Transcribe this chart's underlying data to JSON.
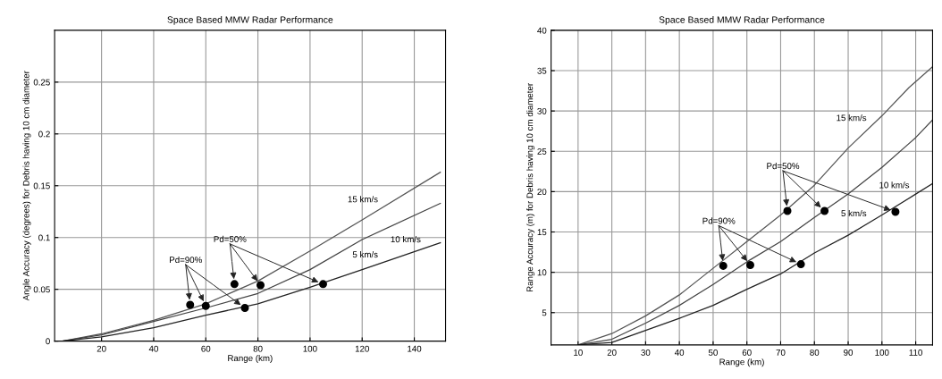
{
  "chart_data": [
    {
      "type": "line",
      "title": "Space Based MMW Radar Performance",
      "xlabel": "Range (km)",
      "ylabel": "Angle Accuracy (degrees) for Debris having 10 cm diameter",
      "xlim": [
        2,
        152
      ],
      "ylim": [
        0,
        0.3
      ],
      "xticks": [
        20,
        40,
        60,
        80,
        100,
        120,
        140
      ],
      "yticks": [
        0,
        0.05,
        0.1,
        0.15,
        0.2,
        0.25
      ],
      "grid": true,
      "marker": "none",
      "series": [
        {
          "name": "15 km/s",
          "color": "#555555",
          "x": [
            5,
            20,
            40,
            60,
            80,
            100,
            120,
            150
          ],
          "values": [
            0,
            0.007,
            0.02,
            0.036,
            0.058,
            0.087,
            0.117,
            0.163
          ]
        },
        {
          "name": "10 km/s",
          "color": "#444444",
          "x": [
            5,
            20,
            40,
            60,
            80,
            100,
            120,
            150
          ],
          "values": [
            0,
            0.006,
            0.019,
            0.032,
            0.046,
            0.069,
            0.098,
            0.133
          ]
        },
        {
          "name": "5 km/s",
          "color": "#222222",
          "x": [
            5,
            20,
            40,
            60,
            80,
            100,
            120,
            150
          ],
          "values": [
            0,
            0.004,
            0.013,
            0.025,
            0.036,
            0.052,
            0.069,
            0.095
          ]
        },
        {
          "type": "scatter",
          "marker": "circle",
          "color": "#000000",
          "x": [
            54,
            60,
            75
          ],
          "values": [
            0.035,
            0.034,
            0.032
          ]
        },
        {
          "type": "scatter",
          "marker": "circle",
          "color": "#000000",
          "x": [
            71,
            81,
            105
          ],
          "values": [
            0.055,
            0.054,
            0.055
          ]
        }
      ],
      "annotations": [
        {
          "text": "Pd=90%",
          "x": 54,
          "y": 0.035
        },
        {
          "text": "Pd=50%",
          "x": 71,
          "y": 0.055
        }
      ]
    },
    {
      "type": "line",
      "title": "Space Based MMW Radar Performance",
      "xlabel": "Range (km)",
      "ylabel": "Range Accuracy (m) for Debris having 10 cm diameter",
      "xlim": [
        2,
        115
      ],
      "ylim": [
        1,
        40
      ],
      "xticks": [
        10,
        20,
        30,
        40,
        50,
        60,
        70,
        80,
        90,
        100,
        110
      ],
      "yticks": [
        5,
        10,
        15,
        20,
        25,
        30,
        35,
        40
      ],
      "grid": true,
      "marker": "none",
      "series": [
        {
          "name": "15 km/s",
          "color": "#555555",
          "x": [
            10,
            20,
            30,
            40,
            50,
            60,
            70,
            80,
            90,
            100,
            108,
            115
          ],
          "values": [
            1,
            2.4,
            4.6,
            7.2,
            10.5,
            13.8,
            17.1,
            20.8,
            25.4,
            29.4,
            32.9,
            35.5
          ]
        },
        {
          "name": "10 km/s",
          "color": "#444444",
          "x": [
            10,
            20,
            30,
            40,
            50,
            60,
            70,
            80,
            90,
            100,
            110,
            115
          ],
          "values": [
            1,
            1.7,
            3.7,
            5.9,
            8.5,
            11.3,
            13.8,
            16.8,
            19.7,
            23,
            26.7,
            28.9
          ]
        },
        {
          "name": "5 km/s",
          "color": "#222222",
          "x": [
            10,
            20,
            30,
            40,
            50,
            60,
            70,
            80,
            90,
            100,
            110,
            115
          ],
          "values": [
            1,
            1.3,
            2.8,
            4.3,
            5.9,
            7.9,
            9.8,
            12.4,
            14.6,
            17.1,
            19.7,
            21
          ]
        },
        {
          "type": "scatter",
          "marker": "circle",
          "color": "#000000",
          "x": [
            53,
            61,
            76
          ],
          "values": [
            10.8,
            10.9,
            11
          ]
        },
        {
          "type": "scatter",
          "marker": "circle",
          "color": "#000000",
          "x": [
            72,
            83,
            104
          ],
          "values": [
            17.6,
            17.6,
            17.5
          ]
        }
      ],
      "annotations": [
        {
          "text": "Pd=90%",
          "x": 53,
          "y": 10.8
        },
        {
          "text": "Pd=50%",
          "x": 72,
          "y": 17.6
        }
      ]
    }
  ]
}
